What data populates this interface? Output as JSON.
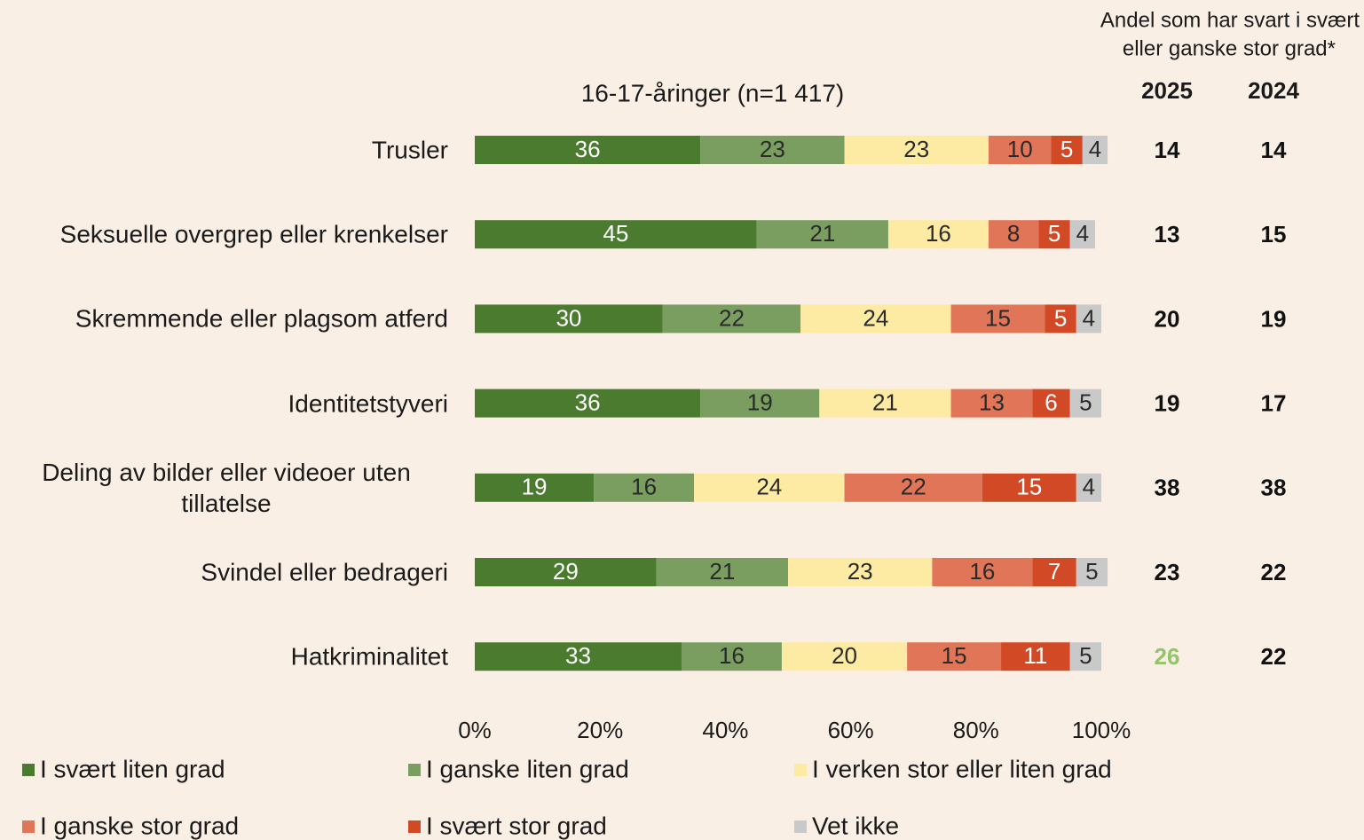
{
  "chart_data": {
    "type": "stacked_barh",
    "annotation": [
      "Andel som har svart i svært",
      "eller ganske stor grad*"
    ],
    "subtitle": "16-17-åringer (n=1 417)",
    "categories": [
      "Trusler",
      "Seksuelle overgrep eller krenkelser",
      "Skremmende eller plagsom atferd",
      "Identitetstyveri",
      "Deling av bilder eller videoer uten tillatelse",
      "Svindel eller bedrageri",
      "Hatkriminalitet"
    ],
    "series": [
      {
        "name": "I svært liten grad",
        "color": "#4b7b2e",
        "label_color": "#ffffff",
        "values": [
          36,
          45,
          30,
          36,
          19,
          29,
          33
        ]
      },
      {
        "name": "I ganske liten grad",
        "color": "#7a9e5f",
        "label_color": "#2a2a2a",
        "values": [
          23,
          21,
          22,
          19,
          16,
          21,
          16
        ]
      },
      {
        "name": "I verken stor eller liten grad",
        "color": "#fdeba3",
        "label_color": "#2a2a2a",
        "values": [
          23,
          16,
          24,
          21,
          24,
          23,
          20
        ]
      },
      {
        "name": "I ganske stor grad",
        "color": "#e07558",
        "label_color": "#2a2a2a",
        "values": [
          10,
          8,
          15,
          13,
          22,
          16,
          15
        ]
      },
      {
        "name": "I svært stor grad",
        "color": "#d24a25",
        "label_color": "#ffffff",
        "values": [
          5,
          5,
          5,
          6,
          15,
          7,
          11
        ]
      },
      {
        "name": "Vet ikke",
        "color": "#c9c9c9",
        "label_color": "#2a2a2a",
        "values": [
          4,
          4,
          4,
          5,
          4,
          5,
          5
        ]
      }
    ],
    "xlim": [
      0,
      100
    ],
    "xticks": [
      {
        "value": 0,
        "label": "0%"
      },
      {
        "value": 20,
        "label": "20%"
      },
      {
        "value": 40,
        "label": "40%"
      },
      {
        "value": 60,
        "label": "60%"
      },
      {
        "value": 80,
        "label": "80%"
      },
      {
        "value": 100,
        "label": "100%"
      }
    ],
    "side_columns": [
      {
        "name": "2025",
        "values": [
          14,
          13,
          20,
          19,
          38,
          23,
          26
        ],
        "colors": [
          "#111111",
          "#111111",
          "#111111",
          "#111111",
          "#111111",
          "#111111",
          "#93c46a"
        ]
      },
      {
        "name": "2024",
        "values": [
          14,
          15,
          19,
          17,
          38,
          22,
          22
        ],
        "colors": [
          "#111111",
          "#111111",
          "#111111",
          "#111111",
          "#111111",
          "#111111",
          "#111111"
        ]
      }
    ]
  }
}
